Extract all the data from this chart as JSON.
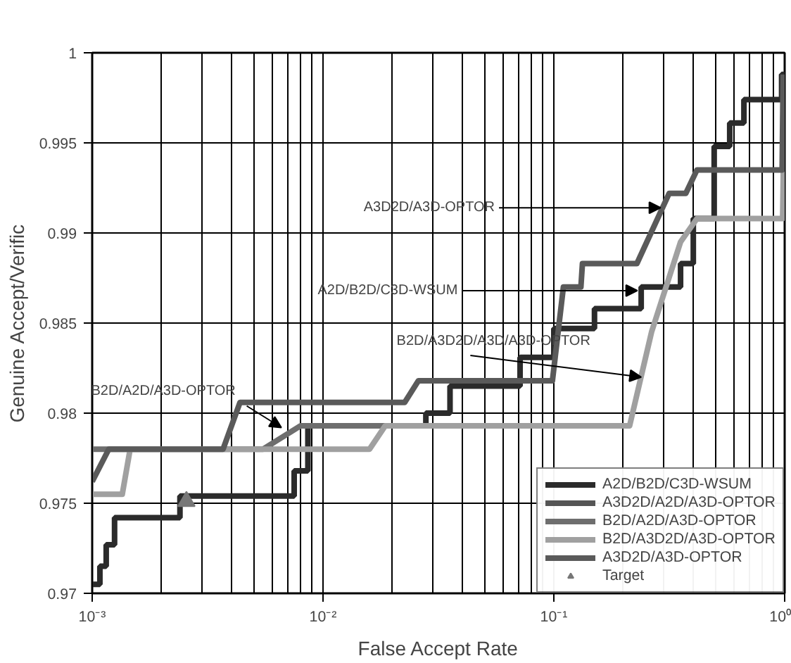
{
  "chart_data": {
    "type": "line",
    "xlabel": "False Accept Rate",
    "ylabel": "Genuine Accept/Verific",
    "log": "x",
    "xlim": [
      0.001,
      1
    ],
    "ylim": [
      0.97,
      1
    ],
    "xticks": [
      {
        "value": 0.001,
        "label": "10⁻³"
      },
      {
        "value": 0.01,
        "label": "10⁻²"
      },
      {
        "value": 0.1,
        "label": "10⁻¹"
      },
      {
        "value": 1,
        "label": "10⁰"
      }
    ],
    "yticks": [
      0.97,
      0.975,
      0.98,
      0.985,
      0.99,
      0.995,
      1
    ],
    "grid": true,
    "legend": "bottom right",
    "line_style": "solid",
    "series": [
      {
        "name": "A2D/B2D/C3D-WSUM",
        "type": "step",
        "color": "#2b2b2b",
        "x": [
          0.001,
          0.00108,
          0.00115,
          0.00125,
          0.0024,
          0.0075,
          0.0086,
          0.0279,
          0.0355,
          0.0714,
          0.1,
          0.15,
          0.239,
          0.354,
          0.402,
          0.495,
          0.578,
          0.666,
          0.97,
          1.0
        ],
        "values": [
          0.9705,
          0.9715,
          0.9727,
          0.9742,
          0.9754,
          0.9768,
          0.9793,
          0.98,
          0.9815,
          0.9831,
          0.9847,
          0.9858,
          0.987,
          0.9883,
          0.9908,
          0.9948,
          0.9961,
          0.9974,
          0.9988,
          0.9988
        ]
      },
      {
        "name": "A3D2D/A2D/A3D-OPTOR",
        "color": "#555555"
      },
      {
        "name": "B2D/A2D/A3D-OPTOR",
        "color": "#6e6e6e",
        "x": [
          0.001,
          0.0055,
          0.008,
          0.0186
        ],
        "values": [
          0.978,
          0.978,
          0.9793,
          0.9793
        ]
      },
      {
        "name": "B2D/A3D2D/A3D-OPTOR",
        "color": "#a0a0a0",
        "x": [
          0.001,
          0.00135,
          0.00146,
          0.0159,
          0.0186,
          0.213,
          0.265,
          0.354,
          0.417,
          0.98,
          1.0
        ],
        "values": [
          0.9755,
          0.9755,
          0.978,
          0.978,
          0.9793,
          0.9793,
          0.9845,
          0.9895,
          0.9908,
          0.9908,
          0.9985
        ]
      },
      {
        "name": "A3D2D/A3D-OPTOR",
        "color": "#5a5a5a",
        "x": [
          0.001,
          0.00118,
          0.00369,
          0.00437,
          0.0226,
          0.0259,
          0.0986,
          0.11,
          0.131,
          0.133,
          0.229,
          0.316,
          0.373,
          0.417,
          0.975,
          0.985
        ],
        "values": [
          0.9762,
          0.978,
          0.978,
          0.9806,
          0.9806,
          0.9818,
          0.9818,
          0.987,
          0.987,
          0.9883,
          0.9883,
          0.9922,
          0.9922,
          0.9935,
          0.9935,
          0.9988
        ]
      },
      {
        "name": "Target",
        "type": "scatter",
        "marker": "triangle",
        "color": "#777777",
        "x": [
          0.00256
        ],
        "values": [
          0.9751
        ]
      }
    ],
    "annotations": [
      {
        "text": "A3D2D/A3D-OPTOR",
        "x": 0.29,
        "y": 0.9914
      },
      {
        "text": "A2D/B2D/C3D-WSUM",
        "x": 0.23,
        "y": 0.9868
      },
      {
        "text": "B2D/A3D2D/A3D/A3D-OPTOR",
        "x": 0.239,
        "y": 0.982
      },
      {
        "text": "B2D/A2D/A3D-OPTOR",
        "x": 0.0066,
        "y": 0.9792
      }
    ]
  }
}
